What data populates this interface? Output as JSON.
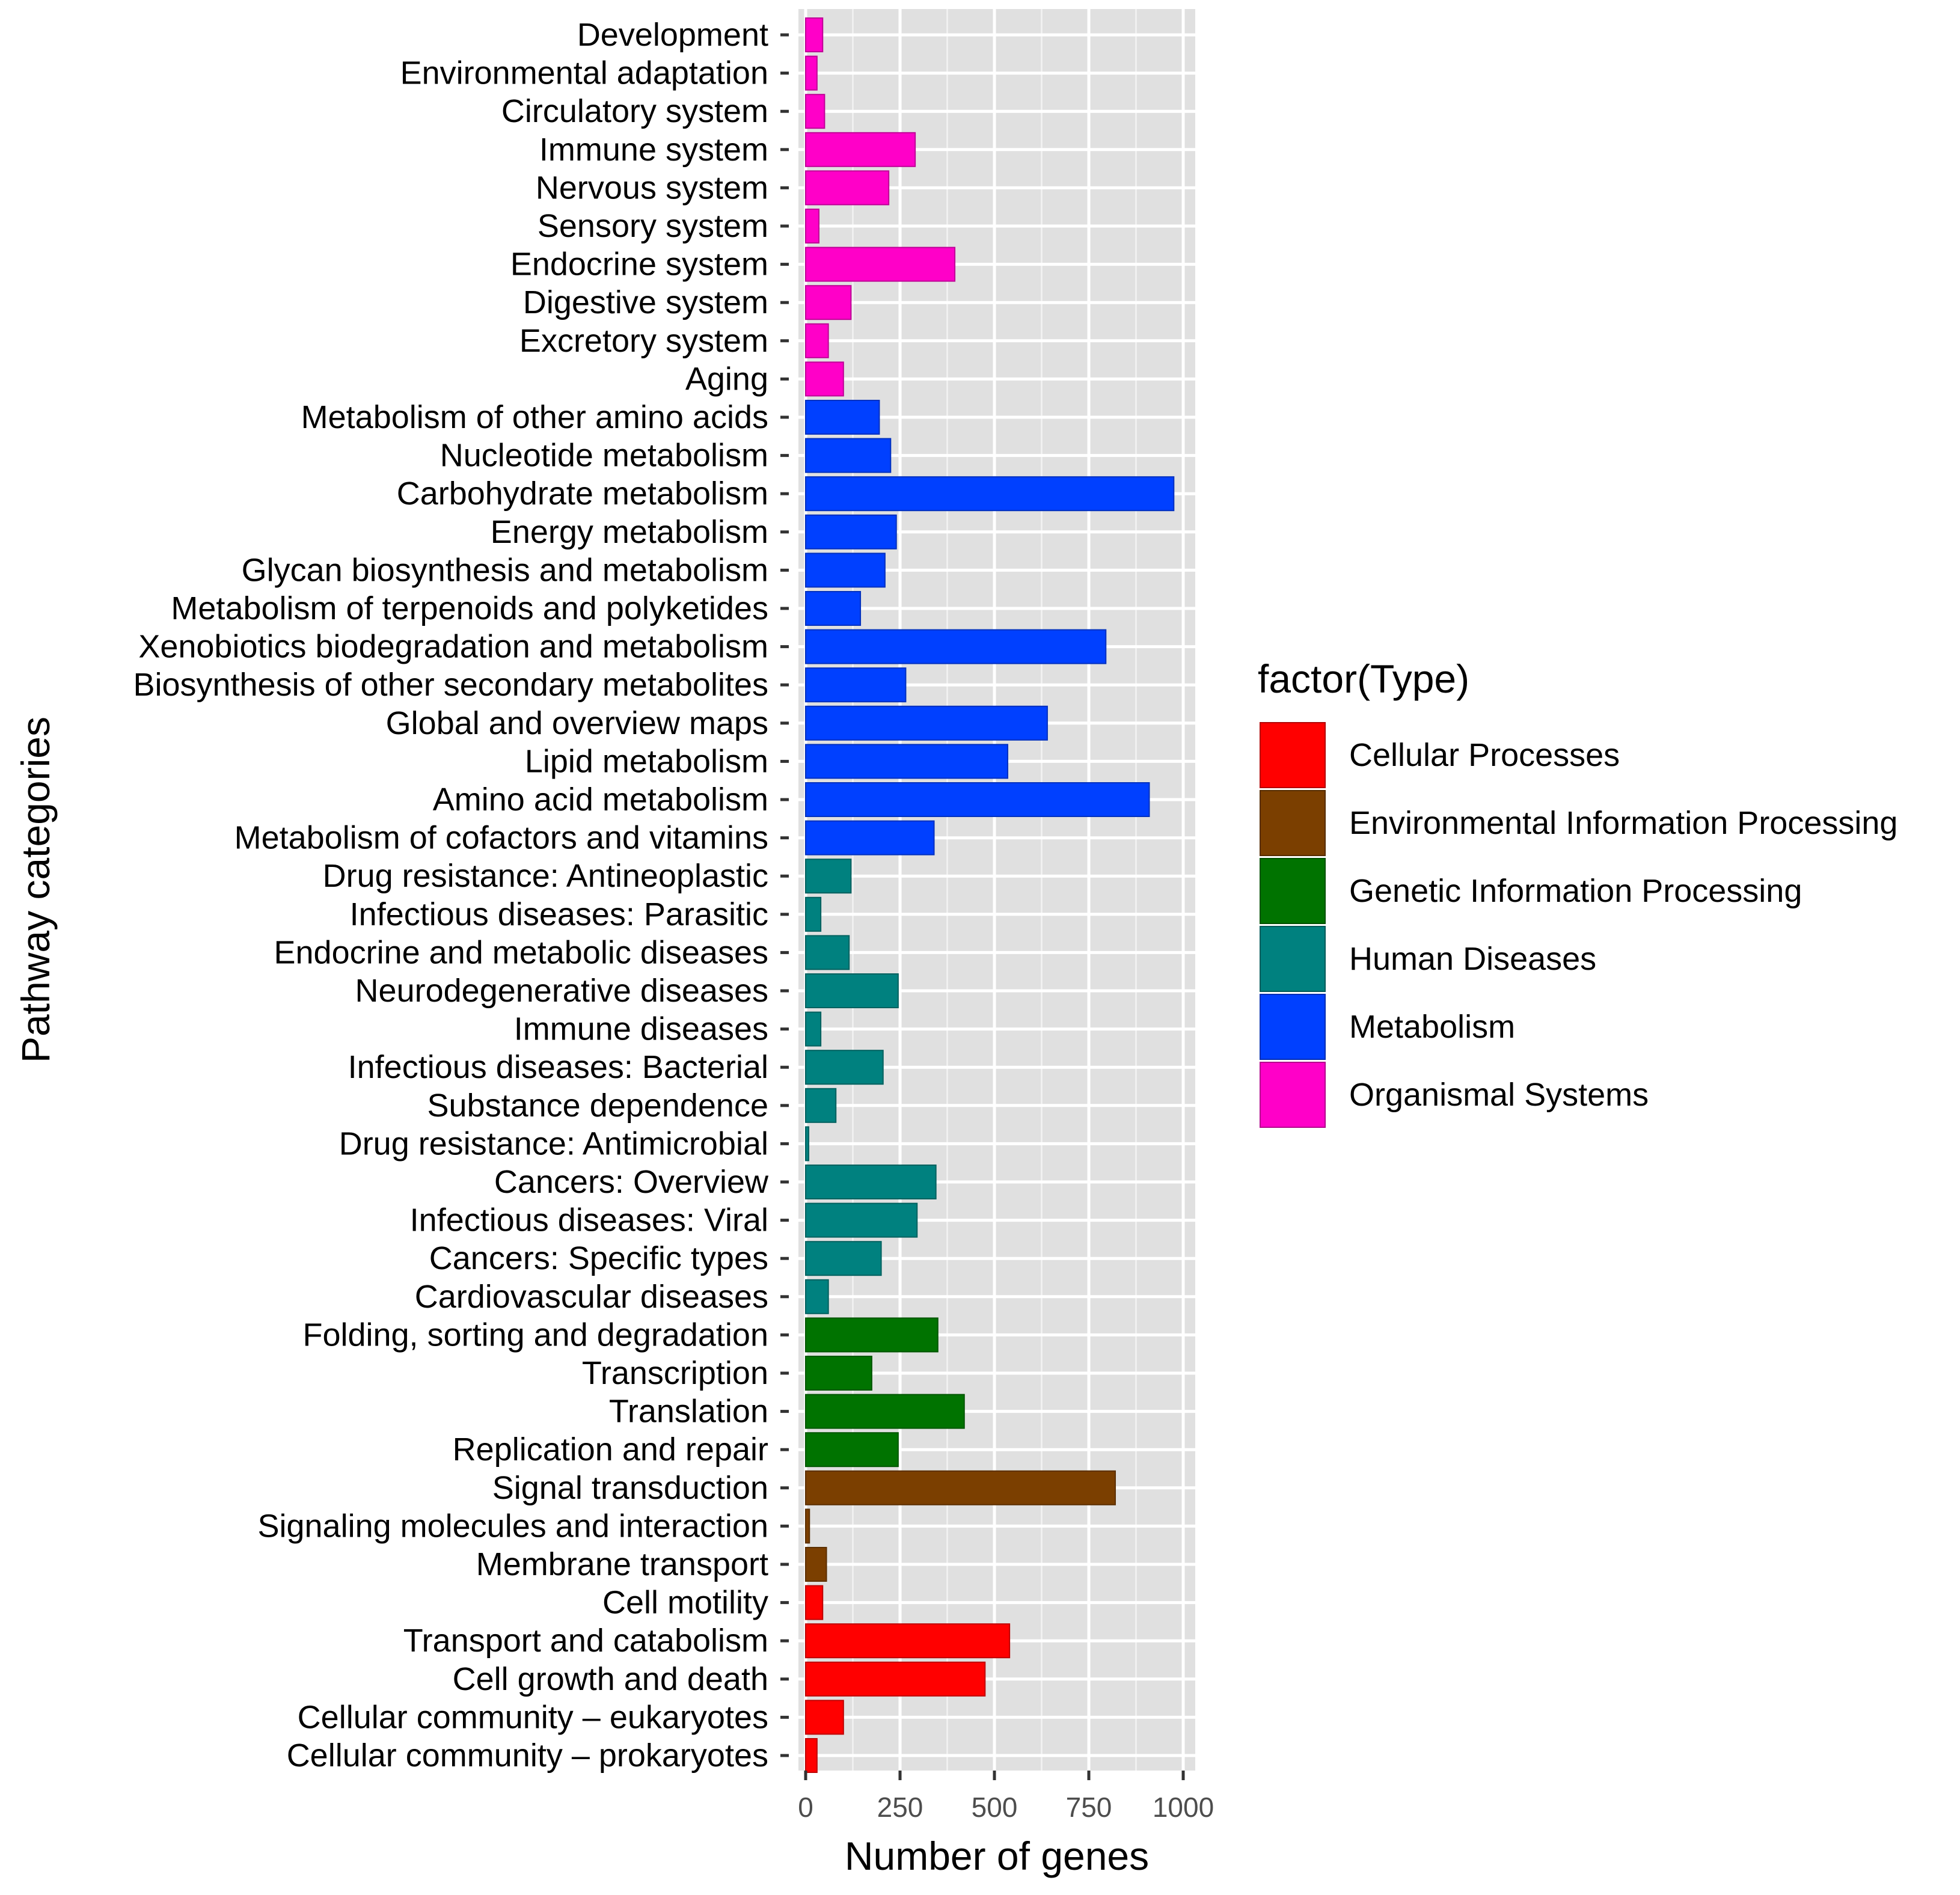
{
  "chart_data": {
    "type": "bar",
    "orientation": "horizontal",
    "title": "",
    "xlabel": "Number of genes",
    "ylabel": "Pathway categories",
    "xlim": [
      0,
      1000
    ],
    "xticks": [
      0,
      250,
      500,
      750,
      1000
    ],
    "grid": true,
    "legend_title": "factor(Type)",
    "legend_position": "right",
    "legend": [
      {
        "name": "Cellular Processes",
        "color": "#ff0000"
      },
      {
        "name": "Environmental Information Processing",
        "color": "#7b3f00"
      },
      {
        "name": "Genetic Information Processing",
        "color": "#007300"
      },
      {
        "name": "Human Diseases",
        "color": "#00817f"
      },
      {
        "name": "Metabolism",
        "color": "#0040ff"
      },
      {
        "name": "Organismal Systems",
        "color": "#ff00c8"
      }
    ],
    "bars": [
      {
        "category": "Development",
        "value": 45,
        "type": "Organismal Systems"
      },
      {
        "category": "Environmental adaptation",
        "value": 30,
        "type": "Organismal Systems"
      },
      {
        "category": "Circulatory system",
        "value": 50,
        "type": "Organismal Systems"
      },
      {
        "category": "Immune system",
        "value": 290,
        "type": "Organismal Systems"
      },
      {
        "category": "Nervous system",
        "value": 220,
        "type": "Organismal Systems"
      },
      {
        "category": "Sensory system",
        "value": 35,
        "type": "Organismal Systems"
      },
      {
        "category": "Endocrine system",
        "value": 395,
        "type": "Organismal Systems"
      },
      {
        "category": "Digestive system",
        "value": 120,
        "type": "Organismal Systems"
      },
      {
        "category": "Excretory system",
        "value": 60,
        "type": "Organismal Systems"
      },
      {
        "category": "Aging",
        "value": 100,
        "type": "Organismal Systems"
      },
      {
        "category": "Metabolism of other amino acids",
        "value": 195,
        "type": "Metabolism"
      },
      {
        "category": "Nucleotide metabolism",
        "value": 225,
        "type": "Metabolism"
      },
      {
        "category": "Carbohydrate metabolism",
        "value": 975,
        "type": "Metabolism"
      },
      {
        "category": "Energy metabolism",
        "value": 240,
        "type": "Metabolism"
      },
      {
        "category": "Glycan biosynthesis and metabolism",
        "value": 210,
        "type": "Metabolism"
      },
      {
        "category": "Metabolism of terpenoids and polyketides",
        "value": 145,
        "type": "Metabolism"
      },
      {
        "category": "Xenobiotics biodegradation and metabolism",
        "value": 795,
        "type": "Metabolism"
      },
      {
        "category": "Biosynthesis of other secondary metabolites",
        "value": 265,
        "type": "Metabolism"
      },
      {
        "category": "Global and overview maps",
        "value": 640,
        "type": "Metabolism"
      },
      {
        "category": "Lipid metabolism",
        "value": 535,
        "type": "Metabolism"
      },
      {
        "category": "Amino acid metabolism",
        "value": 910,
        "type": "Metabolism"
      },
      {
        "category": "Metabolism of cofactors and vitamins",
        "value": 340,
        "type": "Metabolism"
      },
      {
        "category": "Drug resistance: Antineoplastic",
        "value": 120,
        "type": "Human Diseases"
      },
      {
        "category": "Infectious diseases: Parasitic",
        "value": 40,
        "type": "Human Diseases"
      },
      {
        "category": "Endocrine and metabolic diseases",
        "value": 115,
        "type": "Human Diseases"
      },
      {
        "category": "Neurodegenerative diseases",
        "value": 245,
        "type": "Human Diseases"
      },
      {
        "category": "Immune diseases",
        "value": 40,
        "type": "Human Diseases"
      },
      {
        "category": "Infectious diseases: Bacterial",
        "value": 205,
        "type": "Human Diseases"
      },
      {
        "category": "Substance dependence",
        "value": 80,
        "type": "Human Diseases"
      },
      {
        "category": "Drug resistance: Antimicrobial",
        "value": 8,
        "type": "Human Diseases"
      },
      {
        "category": "Cancers: Overview",
        "value": 345,
        "type": "Human Diseases"
      },
      {
        "category": "Infectious diseases: Viral",
        "value": 295,
        "type": "Human Diseases"
      },
      {
        "category": "Cancers: Specific types",
        "value": 200,
        "type": "Human Diseases"
      },
      {
        "category": "Cardiovascular diseases",
        "value": 60,
        "type": "Human Diseases"
      },
      {
        "category": "Folding, sorting and degradation",
        "value": 350,
        "type": "Genetic Information Processing"
      },
      {
        "category": "Transcription",
        "value": 175,
        "type": "Genetic Information Processing"
      },
      {
        "category": "Translation",
        "value": 420,
        "type": "Genetic Information Processing"
      },
      {
        "category": "Replication and repair",
        "value": 245,
        "type": "Genetic Information Processing"
      },
      {
        "category": "Signal transduction",
        "value": 820,
        "type": "Environmental Information Processing"
      },
      {
        "category": "Signaling molecules and interaction",
        "value": 10,
        "type": "Environmental Information Processing"
      },
      {
        "category": "Membrane transport",
        "value": 55,
        "type": "Environmental Information Processing"
      },
      {
        "category": "Cell motility",
        "value": 45,
        "type": "Cellular Processes"
      },
      {
        "category": "Transport and catabolism",
        "value": 540,
        "type": "Cellular Processes"
      },
      {
        "category": "Cell growth and death",
        "value": 475,
        "type": "Cellular Processes"
      },
      {
        "category": "Cellular community – eukaryotes",
        "value": 100,
        "type": "Cellular Processes"
      },
      {
        "category": "Cellular community – prokaryotes",
        "value": 30,
        "type": "Cellular Processes"
      }
    ]
  }
}
